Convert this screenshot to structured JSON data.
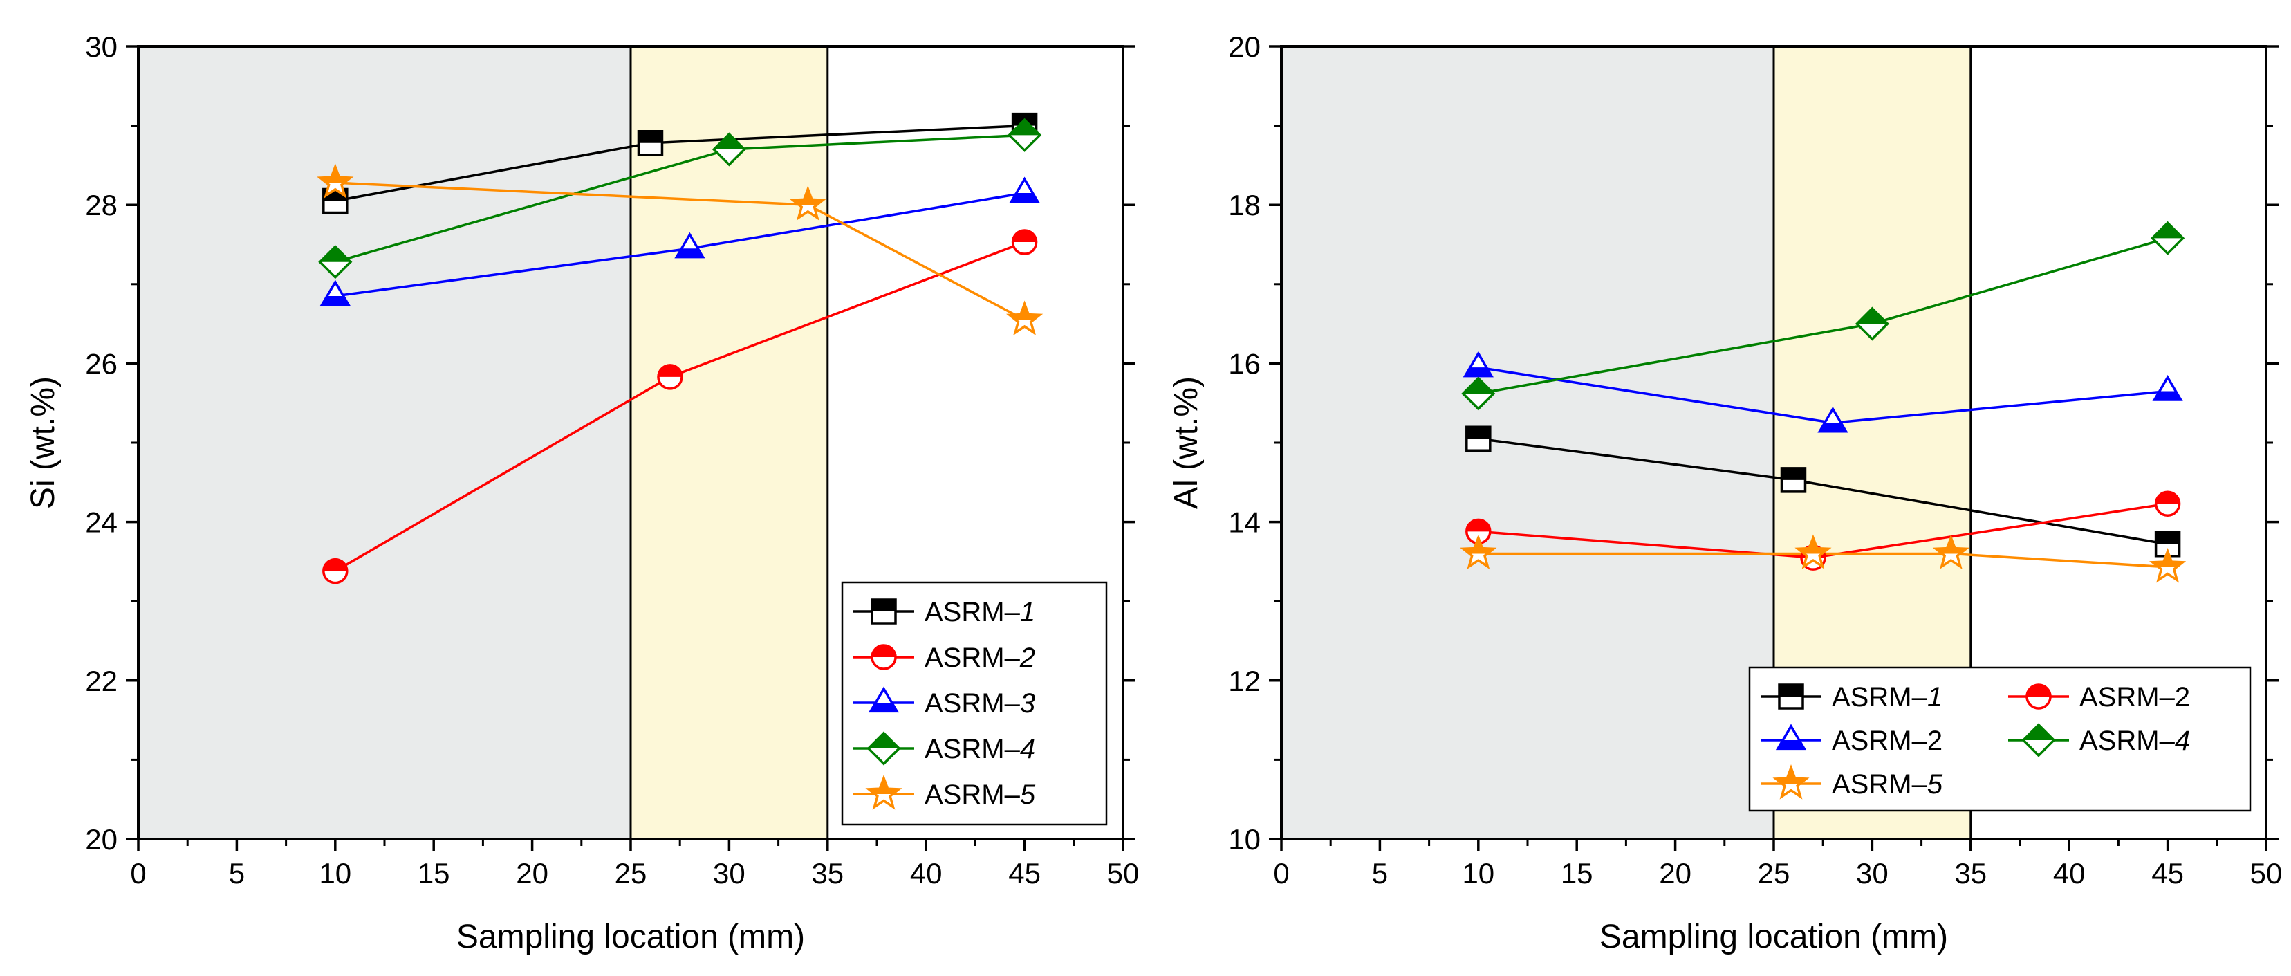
{
  "chart_data": [
    {
      "type": "line",
      "xlabel": "Sampling location (mm)",
      "ylabel": "Si (wt.%)",
      "xlim": [
        0,
        50
      ],
      "ylim": [
        20,
        30
      ],
      "xticks": [
        "0",
        "5",
        "10",
        "15",
        "20",
        "25",
        "30",
        "35",
        "40",
        "45",
        "50"
      ],
      "yticks": [
        "20",
        "22",
        "24",
        "26",
        "28",
        "30"
      ],
      "regions": [
        {
          "from": 0,
          "to": 25,
          "color": "#e9ebeb"
        },
        {
          "from": 25,
          "to": 35,
          "color": "#fdf8d8"
        }
      ],
      "legend_position": "bottom-right",
      "legend_columns": 1,
      "series": [
        {
          "name": "ASRM–1",
          "prefix": "ASRM–",
          "suffix": "1",
          "suffix_italic": true,
          "color": "#000000",
          "marker": "square-half",
          "x": [
            10,
            26,
            45
          ],
          "y": [
            28.05,
            28.78,
            29.0
          ]
        },
        {
          "name": "ASRM–2",
          "prefix": "ASRM–",
          "suffix": "2",
          "suffix_italic": true,
          "color": "#ff0000",
          "marker": "circle-half",
          "x": [
            10,
            27,
            45
          ],
          "y": [
            23.38,
            25.83,
            27.53
          ]
        },
        {
          "name": "ASRM–3",
          "prefix": "ASRM–",
          "suffix": "3",
          "suffix_italic": true,
          "color": "#0000ff",
          "marker": "triangle-half",
          "x": [
            10,
            28,
            45
          ],
          "y": [
            26.85,
            27.45,
            28.15
          ]
        },
        {
          "name": "ASRM–4",
          "prefix": "ASRM–",
          "suffix": "4",
          "suffix_italic": true,
          "color": "#008000",
          "marker": "diamond-half",
          "x": [
            10,
            30,
            45
          ],
          "y": [
            27.28,
            28.7,
            28.88
          ]
        },
        {
          "name": "ASRM–5",
          "prefix": "ASRM–",
          "suffix": "5",
          "suffix_italic": true,
          "color": "#ff8c00",
          "marker": "star-half",
          "x": [
            10,
            34,
            45
          ],
          "y": [
            28.28,
            28.0,
            26.55
          ]
        }
      ]
    },
    {
      "type": "line",
      "xlabel": "Sampling location (mm)",
      "ylabel": "Al (wt.%)",
      "xlim": [
        0,
        50
      ],
      "ylim": [
        10,
        20
      ],
      "xticks": [
        "0",
        "5",
        "10",
        "15",
        "20",
        "25",
        "30",
        "35",
        "40",
        "45",
        "50"
      ],
      "yticks": [
        "10",
        "12",
        "14",
        "16",
        "18",
        "20"
      ],
      "regions": [
        {
          "from": 0,
          "to": 25,
          "color": "#e9ebeb"
        },
        {
          "from": 25,
          "to": 35,
          "color": "#fdf8d8"
        }
      ],
      "legend_position": "bottom-right",
      "legend_columns": 2,
      "series": [
        {
          "name": "ASRM–1",
          "prefix": "ASRM–",
          "suffix": "1",
          "suffix_italic": true,
          "color": "#000000",
          "marker": "square-half",
          "x": [
            10,
            26,
            45
          ],
          "y": [
            15.05,
            14.53,
            13.72
          ]
        },
        {
          "name": "ASRM–2",
          "prefix": "ASRM–",
          "suffix": "2",
          "suffix_italic": false,
          "color": "#ff0000",
          "marker": "circle-half",
          "x": [
            10,
            27,
            45
          ],
          "y": [
            13.88,
            13.55,
            14.23
          ]
        },
        {
          "name": "ASRM–2",
          "prefix": "ASRM–",
          "suffix": "2",
          "suffix_italic": false,
          "color": "#0000ff",
          "marker": "triangle-half",
          "x": [
            10,
            28,
            45
          ],
          "y": [
            15.95,
            15.25,
            15.65
          ]
        },
        {
          "name": "ASRM–4",
          "prefix": "ASRM–",
          "suffix": "4",
          "suffix_italic": true,
          "color": "#008000",
          "marker": "diamond-half",
          "x": [
            10,
            30,
            45
          ],
          "y": [
            15.62,
            16.5,
            17.58
          ]
        },
        {
          "name": "ASRM–5",
          "prefix": "ASRM–",
          "suffix": "5",
          "suffix_italic": true,
          "color": "#ff8c00",
          "marker": "star-half",
          "x": [
            10,
            27,
            34,
            45
          ],
          "y": [
            13.6,
            13.6,
            13.6,
            13.43
          ]
        }
      ]
    }
  ]
}
